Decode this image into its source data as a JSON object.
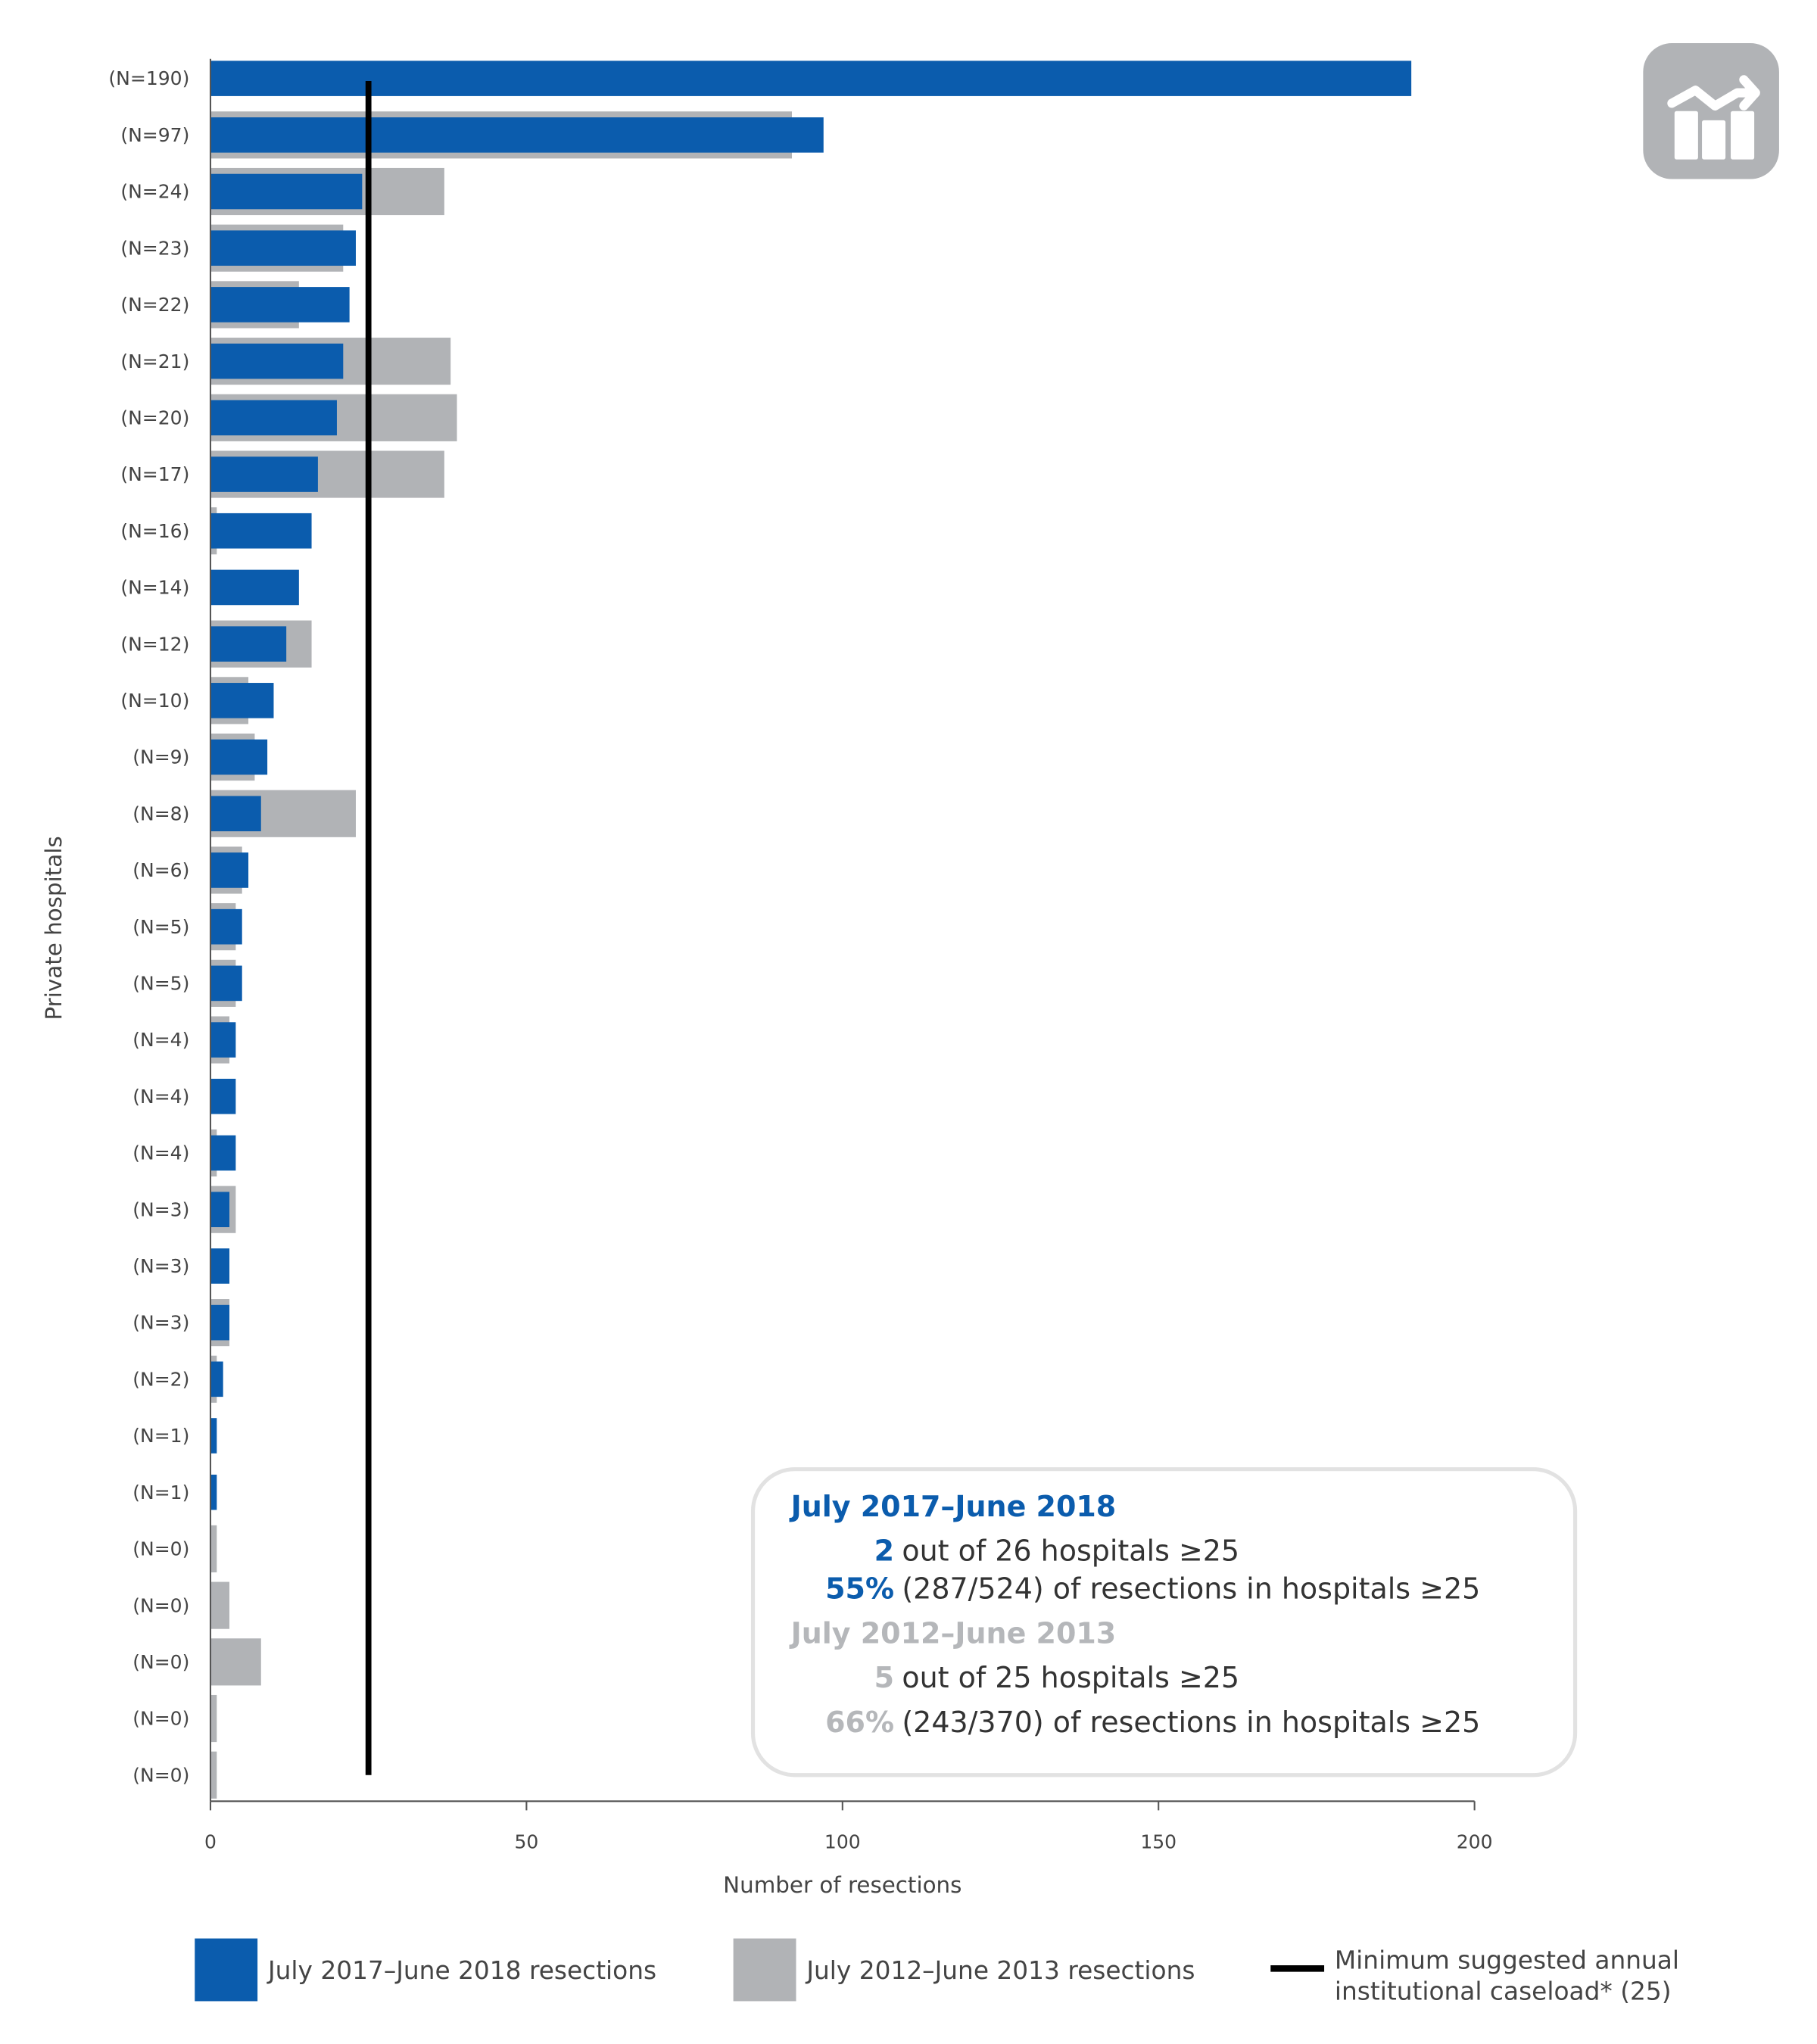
{
  "chart_data": {
    "type": "bar",
    "orientation": "horizontal",
    "categories": [
      "(N=190)",
      "(N=97)",
      "(N=24)",
      "(N=23)",
      "(N=22)",
      "(N=21)",
      "(N=20)",
      "(N=17)",
      "(N=16)",
      "(N=14)",
      "(N=12)",
      "(N=10)",
      "(N=9)",
      "(N=8)",
      "(N=6)",
      "(N=5)",
      "(N=5)",
      "(N=4)",
      "(N=4)",
      "(N=4)",
      "(N=3)",
      "(N=3)",
      "(N=3)",
      "(N=2)",
      "(N=1)",
      "(N=1)",
      "(N=0)",
      "(N=0)",
      "(N=0)",
      "(N=0)",
      "(N=0)"
    ],
    "series": [
      {
        "name": "July 2017–June 2018 resections",
        "color": "#0b5cad",
        "values": [
          190,
          97,
          24,
          23,
          22,
          21,
          20,
          17,
          16,
          14,
          12,
          10,
          9,
          8,
          6,
          5,
          5,
          4,
          4,
          4,
          3,
          3,
          3,
          2,
          1,
          1,
          0,
          0,
          0,
          0,
          0
        ]
      },
      {
        "name": "July 2012–June 2013 resections",
        "color": "#b1b3b6",
        "values": [
          0,
          92,
          37,
          21,
          14,
          38,
          39,
          37,
          1,
          0,
          16,
          6,
          7,
          23,
          5,
          4,
          4,
          3,
          0,
          1,
          4,
          0,
          3,
          1,
          0,
          0,
          1,
          3,
          8,
          1,
          1
        ]
      }
    ],
    "reference_line": {
      "name": "Minimum suggested annual institutional caseload* (25)",
      "value": 25,
      "color": "#000000"
    },
    "xlabel": "Number of resections",
    "ylabel": "Private hospitals",
    "xlim": [
      0,
      200
    ],
    "xticks": [
      "0",
      "50",
      "100",
      "150",
      "200"
    ],
    "xtick_values": [
      0,
      50,
      100,
      150,
      200
    ],
    "grid": false,
    "legend_position": "bottom"
  },
  "legend": {
    "items": [
      {
        "label": "July 2017–June 2018 resections",
        "color": "#0b5cad"
      },
      {
        "label": "July 2012–June 2013 resections",
        "color": "#b1b3b6"
      }
    ],
    "line_label_1": "Minimum suggested annual",
    "line_label_2": "institutional caseload* (25)"
  },
  "summary": {
    "period_1": {
      "title": "July 2017–June 2018",
      "count_value": "2",
      "count_text": "out of 26 hospitals ≥25",
      "pct_value": "55%",
      "pct_text": "(287/524) of resections in hospitals ≥25"
    },
    "period_2": {
      "title": "July 2012–June 2013",
      "count_value": "5",
      "count_text": "out of 25 hospitals ≥25",
      "pct_value": "66%",
      "pct_text": "(243/370) of resections in hospitals ≥25"
    }
  },
  "icon": "chart-trend-icon",
  "colors": {
    "blue": "#0b5cad",
    "grey": "#b1b3b6",
    "text": "#444444"
  }
}
